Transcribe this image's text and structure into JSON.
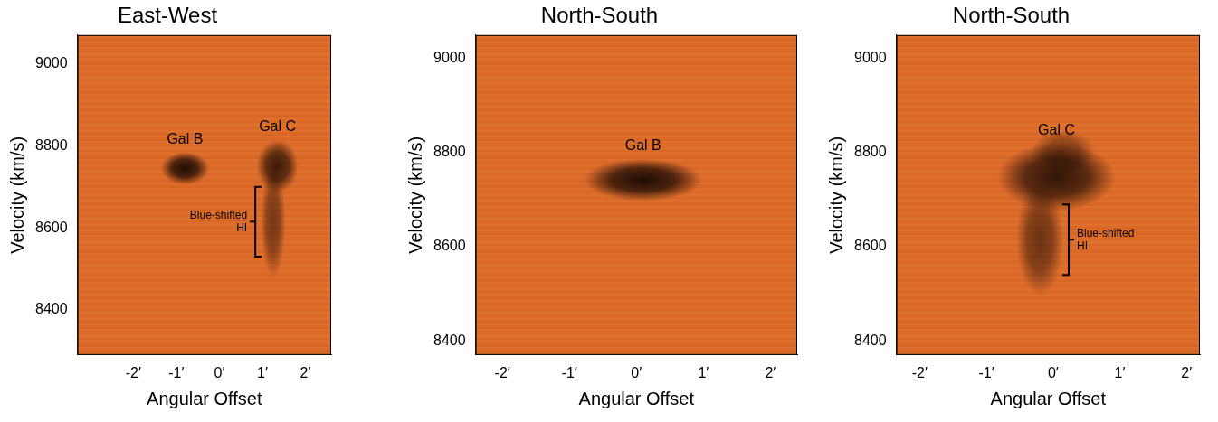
{
  "chart_data": [
    {
      "type": "heatmap",
      "title": "East-West",
      "x_label": "Angular Offset",
      "y_label": "Velocity (km/s)",
      "xlim": [
        -3.3,
        2.6
      ],
      "xticks": [
        {
          "value": -2,
          "label": "-2′"
        },
        {
          "value": -1,
          "label": "-1′"
        },
        {
          "value": 0,
          "label": "0′"
        },
        {
          "value": 1,
          "label": "1′"
        },
        {
          "value": 2,
          "label": "2′"
        }
      ],
      "ylim": [
        8290,
        9070
      ],
      "yticks": [
        8400,
        8600,
        8800,
        9000
      ],
      "grid": false,
      "color": "#1e0c04",
      "components": [
        {
          "x": -0.8,
          "v": 8745,
          "x_halfwidth": 0.35,
          "v_halfwidth": 25,
          "intensity": 1,
          "label": "Gal B"
        },
        {
          "x": 1.35,
          "v": 8750,
          "x_halfwidth": 0.3,
          "v_halfwidth": 40,
          "intensity": 0.85,
          "label": "Gal C"
        },
        {
          "x": 1.25,
          "v": 8615,
          "x_halfwidth": 0.18,
          "v_halfwidth": 85,
          "intensity": 0.55,
          "annotation": "Blue-shifted HI"
        }
      ]
    },
    {
      "type": "heatmap",
      "title": "North-South",
      "x_label": "Angular Offset",
      "y_label": "Velocity (km/s)",
      "xlim": [
        -2.4,
        2.4
      ],
      "xticks": [
        {
          "value": -2,
          "label": "-2′"
        },
        {
          "value": -1,
          "label": "-1′"
        },
        {
          "value": 0,
          "label": "0′"
        },
        {
          "value": 1,
          "label": "1′"
        },
        {
          "value": 2,
          "label": "2′"
        }
      ],
      "ylim": [
        8370,
        9050
      ],
      "yticks": [
        8400,
        8600,
        8800,
        9000
      ],
      "grid": false,
      "color": "#1e0c04",
      "components": [
        {
          "x": 0.1,
          "v": 8742,
          "x_halfwidth": 0.55,
          "v_halfwidth": 28,
          "intensity": 1,
          "label": "Gal B"
        }
      ]
    },
    {
      "type": "heatmap",
      "title": "North-South",
      "x_label": "Angular Offset",
      "y_label": "Velocity (km/s)",
      "xlim": [
        -2.35,
        2.2
      ],
      "xticks": [
        {
          "value": -2,
          "label": "-2′"
        },
        {
          "value": -1,
          "label": "-1′"
        },
        {
          "value": 0,
          "label": "0′"
        },
        {
          "value": 1,
          "label": "1′"
        },
        {
          "value": 2,
          "label": "2′"
        }
      ],
      "ylim": [
        8370,
        9050
      ],
      "yticks": [
        8400,
        8600,
        8800,
        9000
      ],
      "grid": false,
      "color": "#1e0c04",
      "components": [
        {
          "x": 0.05,
          "v": 8748,
          "x_halfwidth": 0.55,
          "v_halfwidth": 45,
          "intensity": 0.9,
          "label": "Gal C"
        },
        {
          "x": 0.15,
          "v": 8800,
          "x_halfwidth": 0.3,
          "v_halfwidth": 30,
          "intensity": 0.5
        },
        {
          "x": -0.2,
          "v": 8615,
          "x_halfwidth": 0.22,
          "v_halfwidth": 75,
          "intensity": 0.6,
          "annotation": "Blue-shifted HI"
        }
      ]
    }
  ]
}
